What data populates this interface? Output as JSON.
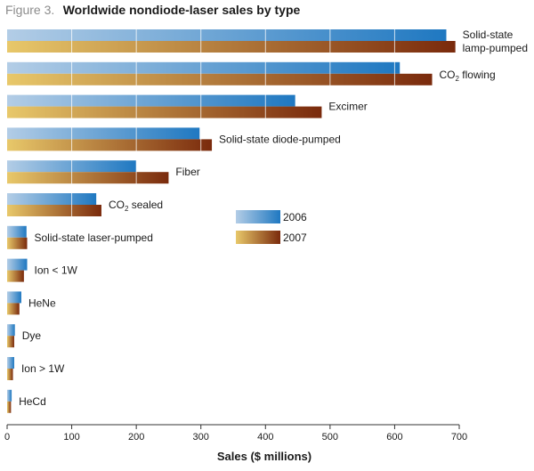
{
  "chart_data": {
    "type": "bar",
    "orientation": "horizontal",
    "title_prefix": "Figure 3.",
    "title": "Worldwide nondiode-laser sales by type",
    "xlabel": "Sales ($ millions)",
    "ylabel": "",
    "xlim": [
      0,
      700
    ],
    "xticks": [
      0,
      100,
      200,
      300,
      400,
      500,
      600,
      700
    ],
    "grid": true,
    "legend_position": "center-right",
    "categories": [
      [
        "Solid-state",
        "lamp-pumped"
      ],
      [
        "CO2 flowing"
      ],
      [
        "Excimer"
      ],
      [
        "Solid-state diode-pumped"
      ],
      [
        "Fiber"
      ],
      [
        "CO2 sealed"
      ],
      [
        "Solid-state laser-pumped"
      ],
      [
        "Ion < 1W"
      ],
      [
        "HeNe"
      ],
      [
        "Dye"
      ],
      [
        "Ion > 1W"
      ],
      [
        "HeCd"
      ]
    ],
    "series": [
      {
        "name": "2006",
        "color_light": "#b3cde6",
        "color_dark": "#1f78c1",
        "values": [
          680,
          608,
          446,
          298,
          200,
          138,
          30,
          31,
          22,
          12,
          11,
          7
        ]
      },
      {
        "name": "2007",
        "color_light": "#e8c86a",
        "color_dark": "#7a2a0c",
        "values": [
          694,
          658,
          487,
          317,
          250,
          146,
          31,
          26,
          19,
          11,
          9,
          6
        ]
      }
    ]
  }
}
